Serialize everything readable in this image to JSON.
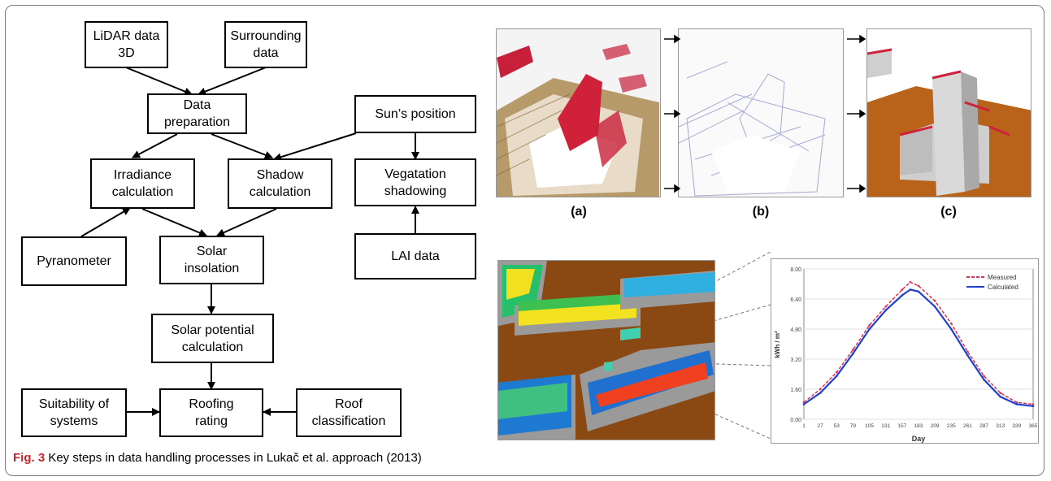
{
  "flowchart": {
    "lidar": "LiDAR data\n3D",
    "surrounding": "Surrounding\ndata",
    "data_prep": "Data\npreparation",
    "sun_position": "Sun’s position",
    "irradiance": "Irradiance\ncalculation",
    "shadow": "Shadow\ncalculation",
    "vegetation": "Vegatation\nshadowing",
    "pyranometer": "Pyranometer",
    "solar_insolation": "Solar\ninsolation",
    "lai": "LAI data",
    "solar_potential": "Solar potential\ncalculation",
    "suitability": "Suitability of\nsystems",
    "roofing": "Roofing\nrating",
    "roof_class": "Roof\nclassification"
  },
  "panels": {
    "a": "(a)",
    "b": "(b)",
    "c": "(c)"
  },
  "inset_chart": {
    "legend_measured": "Measured",
    "legend_calculated": "Calculated",
    "xlabel": "Day",
    "ylabel": "kWh / m²"
  },
  "chart_data": {
    "type": "line",
    "xlabel": "Day",
    "ylabel": "kWh / m²",
    "xlim": [
      1,
      365
    ],
    "ylim": [
      0,
      8
    ],
    "x_ticks": [
      "1",
      "27",
      "53",
      "79",
      "105",
      "131",
      "157",
      "183",
      "209",
      "235",
      "261",
      "287",
      "313",
      "339",
      "365"
    ],
    "y_ticks": [
      "0.00",
      "1.60",
      "3.20",
      "4.80",
      "6.40",
      "8.00"
    ],
    "series": [
      {
        "name": "Measured",
        "color": "#e03050",
        "style": "dashed",
        "x": [
          1,
          27,
          53,
          79,
          105,
          131,
          157,
          170,
          183,
          209,
          235,
          261,
          287,
          313,
          339,
          365
        ],
        "y": [
          0.9,
          1.6,
          2.5,
          3.7,
          5.0,
          6.0,
          6.9,
          7.3,
          7.1,
          6.3,
          5.1,
          3.6,
          2.3,
          1.4,
          0.9,
          0.8
        ]
      },
      {
        "name": "Calculated",
        "color": "#2040d0",
        "style": "solid",
        "x": [
          1,
          27,
          53,
          79,
          105,
          131,
          157,
          170,
          183,
          209,
          235,
          261,
          287,
          313,
          339,
          365
        ],
        "y": [
          0.8,
          1.4,
          2.3,
          3.5,
          4.8,
          5.8,
          6.6,
          6.9,
          6.8,
          6.0,
          4.8,
          3.4,
          2.1,
          1.2,
          0.8,
          0.7
        ]
      }
    ]
  },
  "caption": {
    "label": "Fig. 3",
    "text": " Key steps in data handling processes in Lukač et al. approach (2013)"
  }
}
